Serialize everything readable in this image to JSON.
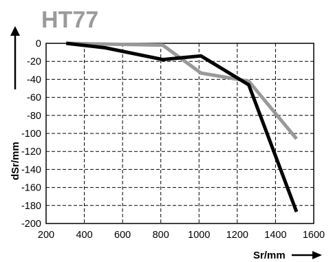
{
  "chart_data": {
    "type": "line",
    "title": "HT77",
    "xlabel": "Sr/mm",
    "ylabel": "dSr/mm",
    "xlim": [
      200,
      1600
    ],
    "ylim": [
      -200,
      0
    ],
    "xticks": [
      200,
      400,
      600,
      800,
      1000,
      1200,
      1400,
      1600
    ],
    "xtick_labels": [
      "200",
      "400",
      "600",
      "800",
      "1000",
      "1200",
      "1400",
      "1600"
    ],
    "yticks": [
      0,
      -20,
      -40,
      -60,
      -80,
      -100,
      -120,
      -140,
      -160,
      -180,
      -200
    ],
    "ytick_labels": [
      "0",
      "-20",
      "-40",
      "-60",
      "-80",
      "-100",
      "-120",
      "-140",
      "-160",
      "-180",
      "-200"
    ],
    "grid": "dashed",
    "legend": "none",
    "series": [
      {
        "color": "#000000",
        "points": [
          [
            305,
            0
          ],
          [
            510,
            -5
          ],
          [
            810,
            -18
          ],
          [
            1010,
            -14
          ],
          [
            1260,
            -46
          ],
          [
            1510,
            -187
          ]
        ]
      },
      {
        "color": "#999999",
        "points": [
          [
            305,
            0
          ],
          [
            810,
            -2
          ],
          [
            1010,
            -33
          ],
          [
            1260,
            -42
          ],
          [
            1510,
            -106
          ]
        ]
      }
    ]
  }
}
